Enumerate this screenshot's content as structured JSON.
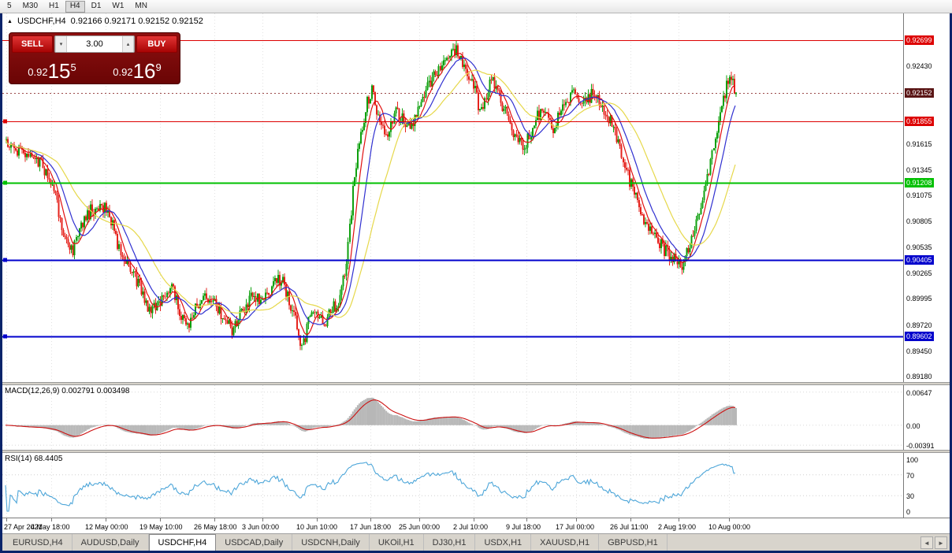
{
  "toolbar": {
    "timeframes": [
      "5",
      "M30",
      "H1",
      "H4",
      "D1",
      "W1",
      "MN"
    ],
    "active": "H4"
  },
  "chart": {
    "title": {
      "symbol": "USDCHF,H4",
      "ohlc": "0.92166 0.92171 0.92152 0.92152"
    },
    "trade_panel": {
      "sell_label": "SELL",
      "buy_label": "BUY",
      "volume": "3.00",
      "sell_price_main": "0.92",
      "sell_price_big": "15",
      "sell_price_sup": "5",
      "buy_price_main": "0.92",
      "buy_price_big": "16",
      "buy_price_sup": "9"
    },
    "price_axis": [
      {
        "text": "0.92699",
        "value": 0.92699,
        "style": "red"
      },
      {
        "text": "0.92430",
        "value": 0.9243,
        "style": "plain"
      },
      {
        "text": "0.92152",
        "value": 0.92152,
        "style": "current"
      },
      {
        "text": "0.91855",
        "value": 0.91855,
        "style": "red"
      },
      {
        "text": "0.91615",
        "value": 0.91615,
        "style": "plain"
      },
      {
        "text": "0.91345",
        "value": 0.91345,
        "style": "plain"
      },
      {
        "text": "0.91208",
        "value": 0.91208,
        "style": "green"
      },
      {
        "text": "0.91075",
        "value": 0.91075,
        "style": "plain"
      },
      {
        "text": "0.90805",
        "value": 0.90805,
        "style": "plain"
      },
      {
        "text": "0.90535",
        "value": 0.90535,
        "style": "plain"
      },
      {
        "text": "0.90405",
        "value": 0.90405,
        "style": "blue"
      },
      {
        "text": "0.90265",
        "value": 0.90265,
        "style": "plain"
      },
      {
        "text": "0.89995",
        "value": 0.89995,
        "style": "plain"
      },
      {
        "text": "0.89720",
        "value": 0.8972,
        "style": "plain"
      },
      {
        "text": "0.89602",
        "value": 0.89602,
        "style": "blue"
      },
      {
        "text": "0.89450",
        "value": 0.8945,
        "style": "plain"
      },
      {
        "text": "0.89180",
        "value": 0.8918,
        "style": "plain"
      }
    ],
    "bid_line": {
      "value": 0.92152,
      "color": "#9b4a4a"
    }
  },
  "macd": {
    "label": "MACD(12,26,9) 0.002791 0.003498",
    "axis_labels": [
      {
        "text": "0.00647",
        "value": 0.00647
      },
      {
        "text": "0.00",
        "value": 0
      },
      {
        "text": "-0.00391",
        "value": -0.00391
      }
    ]
  },
  "rsi": {
    "label": "RSI(14) 68.4405",
    "axis_labels": [
      {
        "text": "100",
        "value": 100
      },
      {
        "text": "70",
        "value": 70
      },
      {
        "text": "30",
        "value": 30
      },
      {
        "text": "0",
        "value": 0
      }
    ],
    "levels": [
      70,
      30
    ]
  },
  "time_axis": [
    {
      "text": "27 Apr 2021",
      "pos": 0.004
    },
    {
      "text": "4 May 18:00",
      "pos": 0.054
    },
    {
      "text": "12 May 00:00",
      "pos": 0.115
    },
    {
      "text": "19 May 10:00",
      "pos": 0.175
    },
    {
      "text": "26 May 18:00",
      "pos": 0.235
    },
    {
      "text": "3 Jun 00:00",
      "pos": 0.289
    },
    {
      "text": "10 Jun 10:00",
      "pos": 0.349
    },
    {
      "text": "17 Jun 18:00",
      "pos": 0.409
    },
    {
      "text": "25 Jun 00:00",
      "pos": 0.463
    },
    {
      "text": "2 Jul 10:00",
      "pos": 0.523
    },
    {
      "text": "9 Jul 18:00",
      "pos": 0.582
    },
    {
      "text": "17 Jul 00:00",
      "pos": 0.637
    },
    {
      "text": "26 Jul 11:00",
      "pos": 0.697
    },
    {
      "text": "2 Aug 19:00",
      "pos": 0.751
    },
    {
      "text": "10 Aug 00:00",
      "pos": 0.807
    }
  ],
  "tabs": {
    "items": [
      "EURUSD,H4",
      "AUDUSD,Daily",
      "USDCHF,H4",
      "USDCAD,Daily",
      "USDCNH,Daily",
      "UKOil,H1",
      "DJ30,H1",
      "USDX,H1",
      "XAUUSD,H1",
      "GBPUSD,H1"
    ],
    "active": "USDCHF,H4"
  },
  "chart_data": {
    "type": "candlestick",
    "symbol": "USDCHF",
    "timeframe": "H4",
    "last_close": 0.92152,
    "ohlc_current": [
      0.92166,
      0.92171,
      0.92152,
      0.92152
    ],
    "y_axis_range": [
      0.8915,
      0.9289
    ],
    "n_candles": 460,
    "seed": 1234567,
    "noise": 0.0007,
    "wick": 0.0006,
    "up_color": "#0ea00e",
    "down_color": "#e5231d",
    "price_path": [
      [
        0.0,
        0.9165
      ],
      [
        0.024,
        0.915
      ],
      [
        0.049,
        0.914
      ],
      [
        0.067,
        0.9108
      ],
      [
        0.079,
        0.9062
      ],
      [
        0.091,
        0.9048
      ],
      [
        0.104,
        0.908
      ],
      [
        0.116,
        0.9092
      ],
      [
        0.14,
        0.9094
      ],
      [
        0.152,
        0.9058
      ],
      [
        0.165,
        0.904
      ],
      [
        0.183,
        0.901
      ],
      [
        0.195,
        0.899
      ],
      [
        0.213,
        0.8996
      ],
      [
        0.226,
        0.9012
      ],
      [
        0.238,
        0.8986
      ],
      [
        0.25,
        0.8975
      ],
      [
        0.262,
        0.8992
      ],
      [
        0.274,
        0.9002
      ],
      [
        0.287,
        0.8995
      ],
      [
        0.299,
        0.8978
      ],
      [
        0.311,
        0.8965
      ],
      [
        0.323,
        0.8986
      ],
      [
        0.335,
        0.9
      ],
      [
        0.352,
        0.8996
      ],
      [
        0.366,
        0.9015
      ],
      [
        0.378,
        0.902
      ],
      [
        0.388,
        0.8995
      ],
      [
        0.398,
        0.8972
      ],
      [
        0.405,
        0.8945
      ],
      [
        0.415,
        0.8978
      ],
      [
        0.426,
        0.8986
      ],
      [
        0.434,
        0.897
      ],
      [
        0.445,
        0.8986
      ],
      [
        0.457,
        0.9
      ],
      [
        0.467,
        0.904
      ],
      [
        0.476,
        0.912
      ],
      [
        0.484,
        0.9165
      ],
      [
        0.494,
        0.9205
      ],
      [
        0.502,
        0.922
      ],
      [
        0.512,
        0.918
      ],
      [
        0.522,
        0.917
      ],
      [
        0.533,
        0.9196
      ],
      [
        0.545,
        0.9185
      ],
      [
        0.555,
        0.9178
      ],
      [
        0.565,
        0.9202
      ],
      [
        0.583,
        0.9228
      ],
      [
        0.6,
        0.9247
      ],
      [
        0.616,
        0.9262
      ],
      [
        0.628,
        0.924
      ],
      [
        0.638,
        0.9232
      ],
      [
        0.649,
        0.9195
      ],
      [
        0.665,
        0.923
      ],
      [
        0.68,
        0.9202
      ],
      [
        0.698,
        0.9168
      ],
      [
        0.71,
        0.9157
      ],
      [
        0.724,
        0.9185
      ],
      [
        0.738,
        0.9202
      ],
      [
        0.75,
        0.9178
      ],
      [
        0.763,
        0.92
      ],
      [
        0.777,
        0.9213
      ],
      [
        0.79,
        0.92
      ],
      [
        0.805,
        0.9218
      ],
      [
        0.817,
        0.9196
      ],
      [
        0.83,
        0.9183
      ],
      [
        0.841,
        0.9155
      ],
      [
        0.85,
        0.9132
      ],
      [
        0.866,
        0.9098
      ],
      [
        0.88,
        0.9072
      ],
      [
        0.894,
        0.9058
      ],
      [
        0.905,
        0.9048
      ],
      [
        0.916,
        0.904
      ],
      [
        0.927,
        0.9034
      ],
      [
        0.939,
        0.9062
      ],
      [
        0.951,
        0.9092
      ],
      [
        0.963,
        0.9132
      ],
      [
        0.976,
        0.9185
      ],
      [
        0.984,
        0.9212
      ],
      [
        0.991,
        0.9238
      ],
      [
        1.0,
        0.92152
      ]
    ],
    "moving_averages": [
      {
        "period": 8,
        "color": "#e01010"
      },
      {
        "period": 16,
        "color": "#3030d0"
      },
      {
        "period": 34,
        "color": "#e6d84a"
      }
    ],
    "horizontal_lines": [
      {
        "value": 0.92699,
        "color": "#dd0000",
        "width": 1,
        "handle": false
      },
      {
        "value": 0.91855,
        "color": "#dd0000",
        "width": 1,
        "handle": true
      },
      {
        "value": 0.91208,
        "color": "#00c000",
        "width": 2,
        "handle": true
      },
      {
        "value": 0.90405,
        "color": "#0000cc",
        "width": 2,
        "handle": true
      },
      {
        "value": 0.89602,
        "color": "#0000cc",
        "width": 2,
        "handle": true
      }
    ],
    "indicators": [
      {
        "name": "MACD",
        "params": [
          12,
          26,
          9
        ],
        "current": [
          0.002791,
          0.003498
        ]
      },
      {
        "name": "RSI",
        "params": [
          14
        ],
        "current": 68.4405
      }
    ]
  }
}
